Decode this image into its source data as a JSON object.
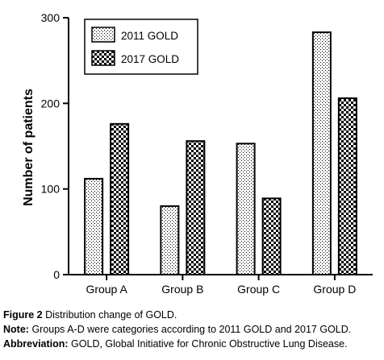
{
  "chart_data": {
    "type": "bar",
    "categories": [
      "Group A",
      "Group B",
      "Group C",
      "Group D"
    ],
    "series": [
      {
        "name": "2011 GOLD",
        "values": [
          112,
          80,
          153,
          283
        ],
        "pattern": "dots-sparse"
      },
      {
        "name": "2017 GOLD",
        "values": [
          176,
          156,
          89,
          206
        ],
        "pattern": "checker-dense"
      }
    ],
    "xlabel": "",
    "ylabel": "Number of patients",
    "ylim": [
      0,
      300
    ],
    "yticks": [
      0,
      100,
      200,
      300
    ],
    "grid": false,
    "legend_position": "top-left"
  },
  "caption": {
    "figure_label": "Figure 2",
    "figure_text": "Distribution change of GOLD.",
    "note_label": "Note:",
    "note_text": "Groups A-D were categories according to 2011 GOLD and 2017 GOLD.",
    "abbrev_label": "Abbreviation:",
    "abbrev_text": "GOLD, Global Initiative for Chronic Obstructive Lung Disease."
  },
  "colors": {
    "axis": "#000000",
    "fill_light": "#ffffff",
    "fill_dark": "#000000"
  }
}
